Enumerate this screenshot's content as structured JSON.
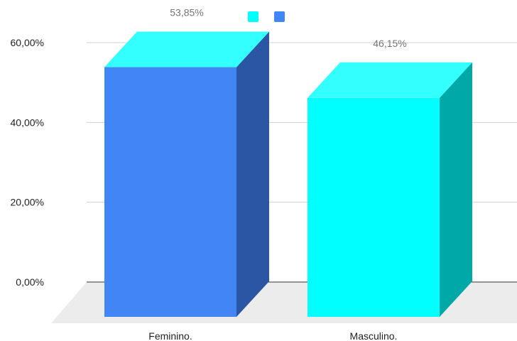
{
  "chart_data": {
    "type": "bar",
    "style": "3d",
    "categories": [
      "Feminino.",
      "Masculino."
    ],
    "values": [
      53.85,
      46.15
    ],
    "data_labels": [
      "53,85%",
      "46,15%"
    ],
    "ylim": [
      0,
      60
    ],
    "y_ticks": [
      {
        "value": 0,
        "label": "0,00%"
      },
      {
        "value": 20,
        "label": "20,00%"
      },
      {
        "value": 40,
        "label": "40,00%"
      },
      {
        "value": 60,
        "label": "60,00%"
      }
    ],
    "legend_position": "top-center",
    "grid": true,
    "colors": {
      "series": [
        {
          "front": "#4285f4",
          "side": "#2a56a3",
          "top": "#33ffff"
        },
        {
          "front": "#00ffff",
          "side": "#00a8a8",
          "top": "#33ffff"
        }
      ],
      "legend": [
        "#00ffff",
        "#4285f4"
      ],
      "gridline": "#d0d0d0",
      "baseline": "#333333",
      "floor": "#ececec"
    }
  }
}
